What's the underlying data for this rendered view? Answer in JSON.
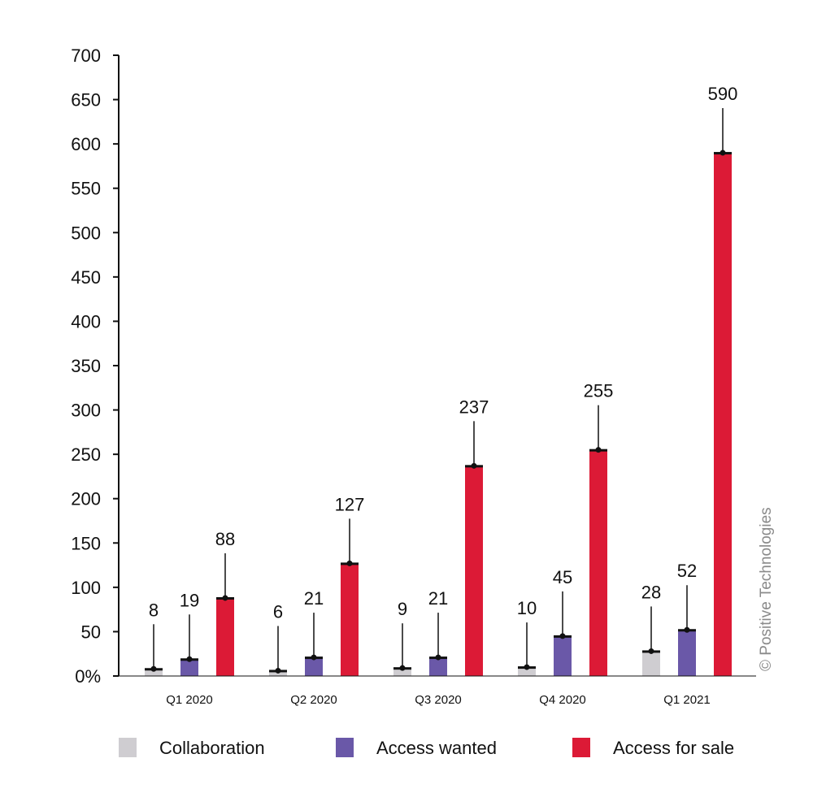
{
  "chart_data": {
    "type": "bar",
    "categories": [
      "Q1 2020",
      "Q2 2020",
      "Q3 2020",
      "Q4 2020",
      "Q1 2021"
    ],
    "series": [
      {
        "name": "Collaboration",
        "color": "#cfcdd1",
        "values": [
          8,
          6,
          9,
          10,
          28
        ]
      },
      {
        "name": "Access wanted",
        "color": "#6a58a8",
        "values": [
          19,
          21,
          21,
          45,
          52
        ]
      },
      {
        "name": "Access for sale",
        "color": "#dc1a36",
        "values": [
          88,
          127,
          237,
          255,
          590
        ]
      }
    ],
    "ylim": [
      0,
      700
    ],
    "yticks": [
      "0%",
      "50",
      "100",
      "150",
      "200",
      "250",
      "300",
      "350",
      "400",
      "450",
      "500",
      "550",
      "600",
      "650",
      "700"
    ],
    "legend_position": "bottom",
    "grid": false,
    "credit": "© Positive Technologies"
  }
}
